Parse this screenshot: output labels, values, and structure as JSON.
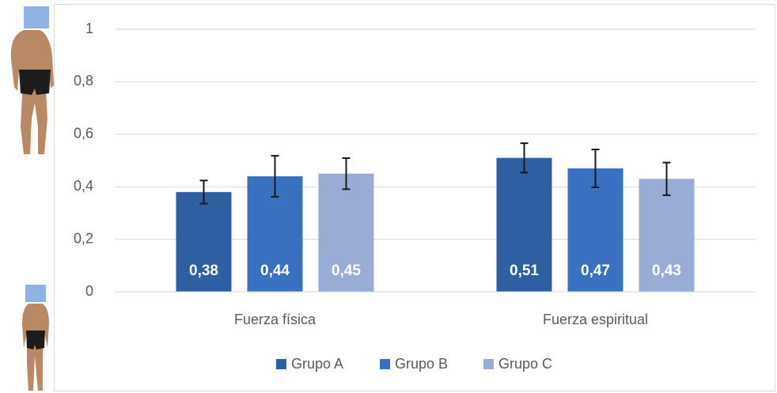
{
  "chart_data": {
    "type": "bar",
    "categories": [
      "Fuerza física",
      "Fuerza espiritual"
    ],
    "series": [
      {
        "name": "Grupo A",
        "color": "#2e5fa3",
        "values": [
          0.38,
          0.51
        ],
        "value_labels": [
          "0,38",
          "0,51"
        ],
        "errors": [
          0.044,
          0.056
        ]
      },
      {
        "name": "Grupo B",
        "color": "#3a70c0",
        "values": [
          0.44,
          0.47
        ],
        "value_labels": [
          "0,44",
          "0,47"
        ],
        "errors": [
          0.078,
          0.072
        ]
      },
      {
        "name": "Grupo C",
        "color": "#98acd6",
        "values": [
          0.45,
          0.43
        ],
        "value_labels": [
          "0,45",
          "0,43"
        ],
        "errors": [
          0.059,
          0.062
        ]
      }
    ],
    "ylim": [
      0,
      1
    ],
    "yticks": [
      0,
      {
        "value": 0.2,
        "label": "0,2"
      },
      {
        "value": 0.4,
        "label": "0,4"
      },
      {
        "value": 0.6,
        "label": "0,6"
      },
      {
        "value": 0.8,
        "label": "0,8"
      },
      1
    ],
    "grid": true,
    "legend": "bottom"
  }
}
